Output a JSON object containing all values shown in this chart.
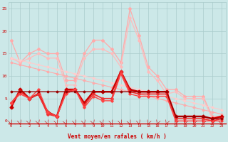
{
  "bg_color": "#cce8e8",
  "grid_color": "#aacccc",
  "dark_red": "#cc0000",
  "xlabel": "Vent moyen/en rafales ( km/h )",
  "ytick_vals": [
    0,
    5,
    10,
    15,
    20,
    25
  ],
  "xtick_vals": [
    0,
    1,
    2,
    3,
    4,
    5,
    6,
    7,
    8,
    9,
    10,
    11,
    12,
    13,
    14,
    15,
    16,
    17,
    18,
    19,
    20,
    21,
    22,
    23
  ],
  "ylim": [
    -0.5,
    26.5
  ],
  "xlim": [
    -0.3,
    23.5
  ],
  "series": [
    {
      "y": [
        18,
        13,
        15,
        16,
        15,
        15,
        9,
        9,
        15,
        18,
        18,
        16,
        13,
        25,
        19,
        12,
        10,
        7,
        7,
        5.5,
        5.5,
        5.5,
        1,
        1
      ],
      "color": "#ffaaaa",
      "lw": 0.9,
      "ms": 2.0
    },
    {
      "y": [
        14,
        13,
        14,
        15,
        14,
        14,
        8,
        8,
        14,
        16,
        16,
        15,
        12,
        23,
        18,
        11,
        9,
        6,
        6.5,
        5,
        5,
        5,
        0.5,
        0.5
      ],
      "color": "#ffbbbb",
      "lw": 0.9,
      "ms": 1.8
    },
    {
      "y": [
        14,
        13.5,
        13,
        12.5,
        12,
        11.5,
        11,
        10.5,
        10,
        9.5,
        9,
        8.5,
        8,
        7.5,
        7,
        6.5,
        6,
        5.5,
        5,
        4.5,
        4,
        3.5,
        3,
        2.5
      ],
      "color": "#ffcccc",
      "lw": 0.8,
      "ms": 1.5
    },
    {
      "y": [
        13,
        12.5,
        12,
        11.5,
        11,
        10.5,
        10,
        9.5,
        9,
        8.5,
        8,
        7.5,
        7,
        6.5,
        6,
        5.5,
        5,
        4.5,
        4,
        3.5,
        3,
        2.5,
        2,
        1.5
      ],
      "color": "#ffaaaa",
      "lw": 0.8,
      "ms": 1.5
    },
    {
      "y": [
        3,
        7,
        5,
        6,
        2,
        1,
        7,
        7,
        4,
        6.5,
        6.5,
        6.5,
        11,
        7,
        6.5,
        6.5,
        6.5,
        6.5,
        1,
        1,
        1,
        1,
        0.5,
        1
      ],
      "color": "#cc0000",
      "lw": 1.8,
      "ms": 2.5
    },
    {
      "y": [
        4,
        6.5,
        5,
        6,
        1.5,
        1,
        6.5,
        7,
        3.5,
        6,
        5,
        5,
        11,
        6.5,
        6,
        6,
        6,
        6,
        0.5,
        0.5,
        0.5,
        0.5,
        0,
        0.5
      ],
      "color": "#ee3333",
      "lw": 1.2,
      "ms": 2.0
    },
    {
      "y": [
        4,
        6,
        5,
        7,
        2,
        1,
        6,
        7,
        3,
        5.5,
        4.5,
        4.5,
        10.5,
        6,
        5.5,
        5.5,
        5.5,
        5.5,
        0,
        0,
        0,
        0,
        0,
        0
      ],
      "color": "#ff4444",
      "lw": 1.0,
      "ms": 1.8
    },
    {
      "y": [
        6.5,
        6.5,
        6.5,
        6.5,
        6.5,
        6.5,
        6.5,
        6.5,
        6.5,
        6.5,
        6.5,
        6.5,
        6.5,
        6.5,
        6.5,
        6.5,
        6.5,
        6.5,
        1,
        1,
        1,
        1,
        0.5,
        0.5
      ],
      "color": "#990000",
      "lw": 1.0,
      "ms": 1.5
    }
  ],
  "arrow_angles": [
    45,
    45,
    45,
    45,
    45,
    45,
    90,
    45,
    45,
    45,
    45,
    45,
    45,
    90,
    45,
    315,
    315,
    315,
    315,
    315,
    315,
    315,
    315,
    45
  ]
}
